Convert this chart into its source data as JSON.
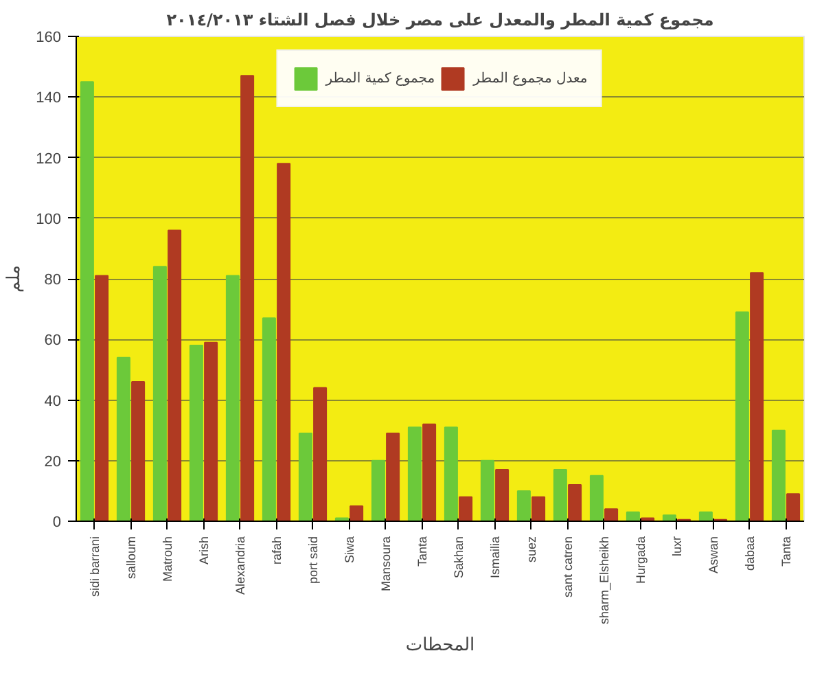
{
  "chart_data": {
    "type": "bar",
    "title": "مجموع كمية المطر والمعدل على مصر خلال فصل الشتاء ٢٠١٤/٢٠١٣",
    "xlabel": "المحطات",
    "ylabel": "ملم",
    "categories": [
      "sidi barrani",
      "salloum",
      "Matrouh",
      "Arish",
      "Alexandria",
      "rafah",
      "port said",
      "Siwa",
      "Mansoura",
      "Tanta",
      "Sakhan",
      "Ismailia",
      "suez",
      "sant catren",
      "sharm_Elsheikh",
      "Hurgada",
      "luxr",
      "Aswan",
      "dabaa",
      "Tanta"
    ],
    "series": [
      {
        "name": "مجموع كمية المطر",
        "color": "#6cc93a",
        "values": [
          145,
          54,
          84,
          58,
          81,
          67,
          29,
          1,
          20,
          31,
          31,
          20,
          10,
          17,
          15,
          3,
          2,
          3,
          69,
          30
        ]
      },
      {
        "name": "معدل مجموع المطر",
        "color": "#b03a22",
        "values": [
          81,
          46,
          96,
          59,
          147,
          118,
          44,
          5,
          29,
          32,
          8,
          17,
          8,
          12,
          4,
          1,
          0.5,
          0.5,
          82,
          9
        ]
      }
    ],
    "ylim": [
      0,
      160
    ],
    "yticks": [
      0,
      20,
      40,
      60,
      80,
      100,
      120,
      140,
      160
    ],
    "grid": "y",
    "legend": "top"
  }
}
